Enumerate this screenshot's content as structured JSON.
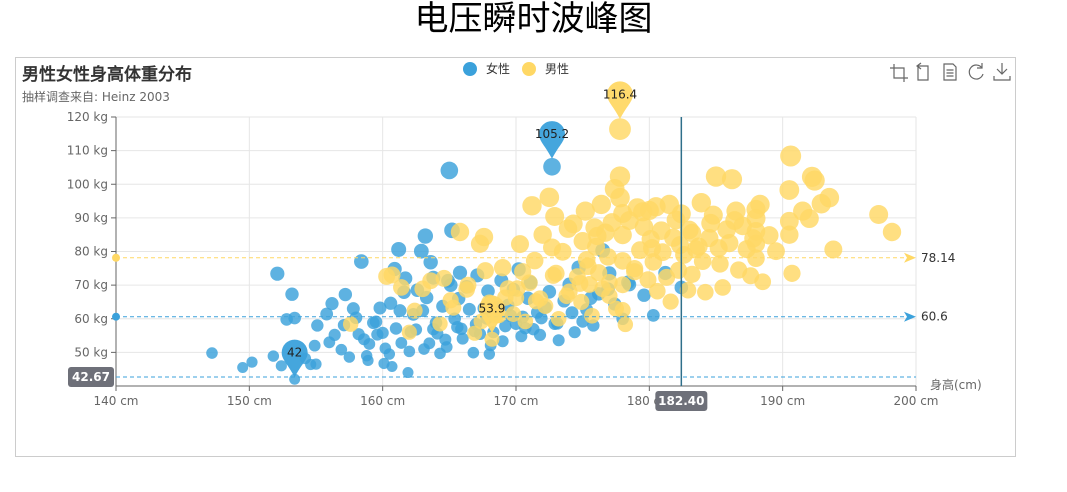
{
  "page": {
    "title": "电压瞬时波峰图"
  },
  "chart_data": {
    "type": "scatter",
    "title": "男性女性身高体重分布",
    "subtitle": "抽样调查来自: Heinz  2003",
    "xlabel": "身高(cm)",
    "ylabel": "",
    "xlim": [
      140,
      200
    ],
    "ylim": [
      40,
      120
    ],
    "x_ticks": [
      "140 cm",
      "150 cm",
      "160 cm",
      "170 cm",
      "180 cm",
      "190 cm",
      "200 cm"
    ],
    "y_ticks": [
      "50 kg",
      "60 kg",
      "70 kg",
      "80 kg",
      "90 kg",
      "100 kg",
      "110 kg",
      "120 kg"
    ],
    "grid": true,
    "legend_position": "top-center",
    "series": [
      {
        "name": "女性",
        "color": "#3ba1db",
        "mark_point": {
          "max": "105.2",
          "min": "42"
        },
        "mark_line": {
          "average": "60.6"
        },
        "points": [
          [
            147.2,
            49.8
          ],
          [
            149.5,
            45.5
          ],
          [
            150.2,
            47.1
          ],
          [
            151.8,
            48.9
          ],
          [
            152.1,
            73.4
          ],
          [
            153.2,
            67.3
          ],
          [
            152.4,
            46.0
          ],
          [
            152.8,
            59.8
          ],
          [
            153.4,
            60.2
          ],
          [
            154.2,
            48.2
          ],
          [
            154.9,
            52.0
          ],
          [
            155.1,
            58.0
          ],
          [
            155.0,
            46.5
          ],
          [
            155.8,
            61.4
          ],
          [
            156.2,
            64.5
          ],
          [
            156.4,
            55.2
          ],
          [
            156.9,
            50.8
          ],
          [
            157.2,
            67.2
          ],
          [
            157.5,
            48.6
          ],
          [
            157.8,
            63.0
          ],
          [
            158.2,
            55.4
          ],
          [
            158.4,
            77.0
          ],
          [
            158.6,
            53.9
          ],
          [
            158.9,
            47.6
          ],
          [
            159.5,
            59.1
          ],
          [
            159.8,
            63.2
          ],
          [
            160.0,
            55.8
          ],
          [
            160.2,
            51.2
          ],
          [
            160.5,
            49.5
          ],
          [
            160.6,
            64.6
          ],
          [
            160.9,
            74.8
          ],
          [
            161.2,
            80.6
          ],
          [
            161.4,
            52.8
          ],
          [
            161.6,
            67.9
          ],
          [
            161.9,
            44.0
          ],
          [
            162.1,
            56.1
          ],
          [
            162.3,
            61.3
          ],
          [
            162.6,
            68.5
          ],
          [
            162.9,
            80.1
          ],
          [
            163.0,
            62.4
          ],
          [
            163.2,
            84.6
          ],
          [
            163.3,
            66.3
          ],
          [
            163.5,
            52.7
          ],
          [
            163.8,
            72.2
          ],
          [
            164.0,
            58.8
          ],
          [
            164.1,
            55.6
          ],
          [
            164.5,
            63.7
          ],
          [
            164.8,
            51.6
          ],
          [
            165.0,
            104.1
          ],
          [
            165.1,
            70.0
          ],
          [
            165.2,
            86.3
          ],
          [
            165.4,
            60.0
          ],
          [
            165.6,
            57.5
          ],
          [
            165.8,
            73.7
          ],
          [
            166.0,
            54.1
          ],
          [
            166.3,
            69.5
          ],
          [
            166.5,
            62.8
          ],
          [
            166.8,
            49.9
          ],
          [
            167.0,
            58.4
          ],
          [
            167.1,
            72.9
          ],
          [
            167.3,
            55.5
          ],
          [
            167.6,
            63.1
          ],
          [
            167.9,
            68.2
          ],
          [
            168.0,
            49.5
          ],
          [
            168.3,
            56.0
          ],
          [
            168.5,
            61.7
          ],
          [
            168.9,
            71.4
          ],
          [
            169.0,
            53.3
          ],
          [
            169.2,
            57.8
          ],
          [
            169.4,
            64.0
          ],
          [
            169.8,
            68.7
          ],
          [
            170.0,
            58.5
          ],
          [
            170.2,
            74.7
          ],
          [
            170.4,
            54.8
          ],
          [
            170.5,
            60.5
          ],
          [
            170.9,
            66.1
          ],
          [
            171.1,
            70.8
          ],
          [
            171.3,
            56.9
          ],
          [
            171.6,
            61.9
          ],
          [
            171.8,
            55.2
          ],
          [
            172.2,
            63.4
          ],
          [
            172.5,
            68.0
          ],
          [
            172.7,
            105.2
          ],
          [
            172.9,
            58.5
          ],
          [
            173.2,
            53.6
          ],
          [
            173.6,
            65.3
          ],
          [
            174.0,
            70.2
          ],
          [
            174.4,
            56.0
          ],
          [
            174.7,
            75.2
          ],
          [
            175.0,
            59.2
          ],
          [
            175.3,
            62.7
          ],
          [
            175.8,
            58.0
          ],
          [
            176.2,
            67.4
          ],
          [
            176.5,
            80.3
          ],
          [
            177.0,
            73.5
          ],
          [
            177.4,
            64.4
          ],
          [
            178.0,
            60.0
          ],
          [
            178.5,
            70.2
          ],
          [
            179.6,
            67.0
          ],
          [
            180.3,
            61.0
          ],
          [
            181.2,
            73.6
          ],
          [
            182.4,
            69.3
          ],
          [
            158.8,
            49.0
          ],
          [
            159.0,
            52.5
          ],
          [
            159.3,
            58.8
          ],
          [
            160.1,
            46.7
          ],
          [
            161.0,
            57.1
          ],
          [
            162.0,
            50.3
          ],
          [
            163.8,
            56.9
          ],
          [
            164.3,
            49.7
          ],
          [
            165.7,
            66.0
          ],
          [
            166.9,
            56.3
          ],
          [
            168.1,
            52.1
          ],
          [
            169.6,
            60.9
          ],
          [
            153.4,
            42.0
          ],
          [
            154.6,
            46.4
          ],
          [
            156.0,
            53.0
          ],
          [
            157.1,
            58.1
          ],
          [
            158.0,
            60.3
          ],
          [
            159.6,
            55.3
          ],
          [
            160.7,
            45.8
          ],
          [
            161.3,
            62.4
          ],
          [
            162.5,
            56.8
          ],
          [
            163.1,
            51.0
          ],
          [
            164.7,
            53.8
          ],
          [
            165.9,
            57.0
          ],
          [
            167.8,
            60.1
          ],
          [
            168.7,
            63.5
          ],
          [
            170.7,
            57.2
          ],
          [
            171.9,
            60.2
          ],
          [
            173.1,
            58.6
          ],
          [
            174.2,
            61.8
          ],
          [
            175.6,
            66.1
          ],
          [
            176.9,
            68.8
          ],
          [
            178.4,
            70.8
          ],
          [
            161.7,
            72.0
          ],
          [
            163.6,
            76.8
          ],
          [
            164.9,
            71.3
          ]
        ]
      },
      {
        "name": "男性",
        "color": "#ffd865",
        "mark_point": {
          "max": "116.4",
          "min": "53.9"
        },
        "mark_line": {
          "average": "78.14"
        },
        "points": [
          [
            157.6,
            58.4
          ],
          [
            160.7,
            73.0
          ],
          [
            161.4,
            69.3
          ],
          [
            162.0,
            56.0
          ],
          [
            163.6,
            71.3
          ],
          [
            164.3,
            58.5
          ],
          [
            165.1,
            65.5
          ],
          [
            165.8,
            85.8
          ],
          [
            166.4,
            70.0
          ],
          [
            166.9,
            55.7
          ],
          [
            167.3,
            82.3
          ],
          [
            167.6,
            84.3
          ],
          [
            167.7,
            74.3
          ],
          [
            168.0,
            64.8
          ],
          [
            168.2,
            53.9
          ],
          [
            168.5,
            60.9
          ],
          [
            169.0,
            75.2
          ],
          [
            169.4,
            69.0
          ],
          [
            169.8,
            61.4
          ],
          [
            170.0,
            66.2
          ],
          [
            170.3,
            82.2
          ],
          [
            170.5,
            74.0
          ],
          [
            170.7,
            59.2
          ],
          [
            171.0,
            70.7
          ],
          [
            171.2,
            93.6
          ],
          [
            171.4,
            77.3
          ],
          [
            171.8,
            66.0
          ],
          [
            172.0,
            85.0
          ],
          [
            172.2,
            63.8
          ],
          [
            172.5,
            96.1
          ],
          [
            172.7,
            81.2
          ],
          [
            172.9,
            90.4
          ],
          [
            173.0,
            73.5
          ],
          [
            173.2,
            60.0
          ],
          [
            173.5,
            79.9
          ],
          [
            173.9,
            86.8
          ],
          [
            174.0,
            68.0
          ],
          [
            174.3,
            88.2
          ],
          [
            174.6,
            72.5
          ],
          [
            174.9,
            65.0
          ],
          [
            175.0,
            83.1
          ],
          [
            175.2,
            92.0
          ],
          [
            175.3,
            77.5
          ],
          [
            175.5,
            70.2
          ],
          [
            175.7,
            60.9
          ],
          [
            175.9,
            87.1
          ],
          [
            176.0,
            81.4
          ],
          [
            176.2,
            73.7
          ],
          [
            176.4,
            94.0
          ],
          [
            176.5,
            68.9
          ],
          [
            176.7,
            85.6
          ],
          [
            176.9,
            78.4
          ],
          [
            177.0,
            70.8
          ],
          [
            177.2,
            88.6
          ],
          [
            177.5,
            63.0
          ],
          [
            177.8,
            116.4
          ],
          [
            177.8,
            102.3
          ],
          [
            177.8,
            96.0
          ],
          [
            178.0,
            91.3
          ],
          [
            178.0,
            84.9
          ],
          [
            178.0,
            77.2
          ],
          [
            178.0,
            70.1
          ],
          [
            178.0,
            62.6
          ],
          [
            178.2,
            58.3
          ],
          [
            178.5,
            89.2
          ],
          [
            178.9,
            74.9
          ],
          [
            179.1,
            93.0
          ],
          [
            179.3,
            80.4
          ],
          [
            179.6,
            87.3
          ],
          [
            179.9,
            71.6
          ],
          [
            180.0,
            92.2
          ],
          [
            180.1,
            83.7
          ],
          [
            180.3,
            76.9
          ],
          [
            180.5,
            93.3
          ],
          [
            180.6,
            68.2
          ],
          [
            180.9,
            86.2
          ],
          [
            181.0,
            79.8
          ],
          [
            181.3,
            72.3
          ],
          [
            181.6,
            65.1
          ],
          [
            181.8,
            84.1
          ],
          [
            182.0,
            89.4
          ],
          [
            182.2,
            74.4
          ],
          [
            182.4,
            91.2
          ],
          [
            182.6,
            79.0
          ],
          [
            182.9,
            68.5
          ],
          [
            183.0,
            86.4
          ],
          [
            183.2,
            73.2
          ],
          [
            183.5,
            80.7
          ],
          [
            183.9,
            94.5
          ],
          [
            184.0,
            77.1
          ],
          [
            184.2,
            67.9
          ],
          [
            184.5,
            84.0
          ],
          [
            184.8,
            90.8
          ],
          [
            185.0,
            102.3
          ],
          [
            185.3,
            76.3
          ],
          [
            185.5,
            69.3
          ],
          [
            185.8,
            86.5
          ],
          [
            186.0,
            82.5
          ],
          [
            186.2,
            101.5
          ],
          [
            186.5,
            92.0
          ],
          [
            186.7,
            74.5
          ],
          [
            187.0,
            87.6
          ],
          [
            187.3,
            80.7
          ],
          [
            187.6,
            72.8
          ],
          [
            188.0,
            92.5
          ],
          [
            188.0,
            89.8
          ],
          [
            188.0,
            86.0
          ],
          [
            188.0,
            82.3
          ],
          [
            188.0,
            78.0
          ],
          [
            188.3,
            94.0
          ],
          [
            188.5,
            71.0
          ],
          [
            189.0,
            84.8
          ],
          [
            189.5,
            80.1
          ],
          [
            190.5,
            89.0
          ],
          [
            190.5,
            85.0
          ],
          [
            190.7,
            73.5
          ],
          [
            190.5,
            98.3
          ],
          [
            190.6,
            108.4
          ],
          [
            191.5,
            92.0
          ],
          [
            192.0,
            89.8
          ],
          [
            192.2,
            102.2
          ],
          [
            192.4,
            101.1
          ],
          [
            192.9,
            94.2
          ],
          [
            193.5,
            96.0
          ],
          [
            193.8,
            80.6
          ],
          [
            197.2,
            91.0
          ],
          [
            198.2,
            85.8
          ],
          [
            183.2,
            85.5
          ],
          [
            180.2,
            81.0
          ],
          [
            178.9,
            74.0
          ],
          [
            177.0,
            66.8
          ],
          [
            176.1,
            84.6
          ],
          [
            175.4,
            75.6
          ],
          [
            174.8,
            70.5
          ],
          [
            173.8,
            66.8
          ],
          [
            172.8,
            72.9
          ],
          [
            171.5,
            65.2
          ],
          [
            170.1,
            69.0
          ],
          [
            169.2,
            66.3
          ],
          [
            168.7,
            61.0
          ],
          [
            167.4,
            59.2
          ],
          [
            166.3,
            68.7
          ],
          [
            165.3,
            63.3
          ],
          [
            164.6,
            72.0
          ],
          [
            163.0,
            68.9
          ],
          [
            162.4,
            62.4
          ],
          [
            160.3,
            72.6
          ],
          [
            177.4,
            98.6
          ],
          [
            179.5,
            91.8
          ],
          [
            181.5,
            94.0
          ],
          [
            182.3,
            81.9
          ],
          [
            183.7,
            81.5
          ],
          [
            184.6,
            88.4
          ],
          [
            185.2,
            81.0
          ],
          [
            186.4,
            89.2
          ],
          [
            187.8,
            83.9
          ]
        ]
      }
    ],
    "axis_pointer": {
      "x": "182.40",
      "y": "42.67"
    },
    "toolbox": [
      "zoom",
      "zoom-reset",
      "data-view",
      "restore",
      "save-as-image"
    ]
  }
}
